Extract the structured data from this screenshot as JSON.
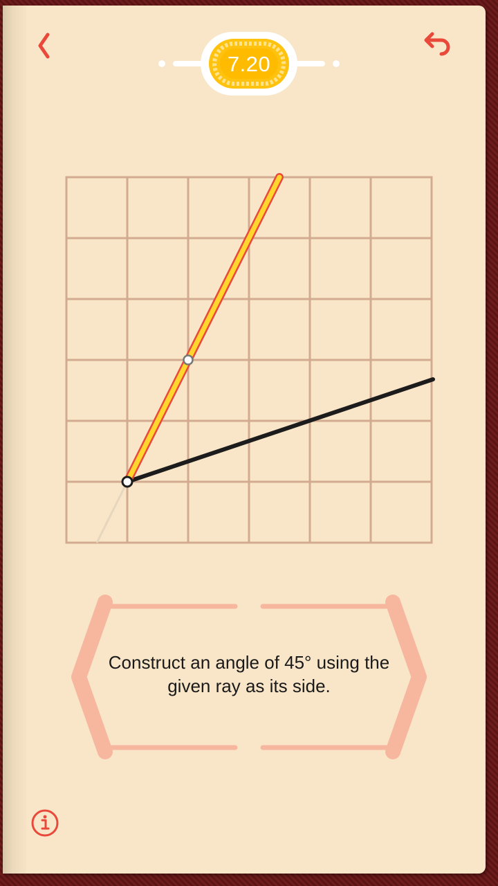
{
  "header": {
    "back_icon": "chevron-left-icon",
    "undo_icon": "undo-icon",
    "score": "7.20"
  },
  "puzzle": {
    "prompt": "Construct an angle of 45° using the given ray as its side.",
    "grid": {
      "columns": 6,
      "rows": 6
    }
  },
  "footer": {
    "info_icon": "info-icon"
  },
  "colors": {
    "accent": "#e8493a",
    "grid": "#d2aa8f",
    "page": "#f9e5c8",
    "medal": "#ffc20e",
    "frame": "#f7b79f",
    "given_ray": "#1c1c1c",
    "constructed_line": "#ffd52e"
  }
}
